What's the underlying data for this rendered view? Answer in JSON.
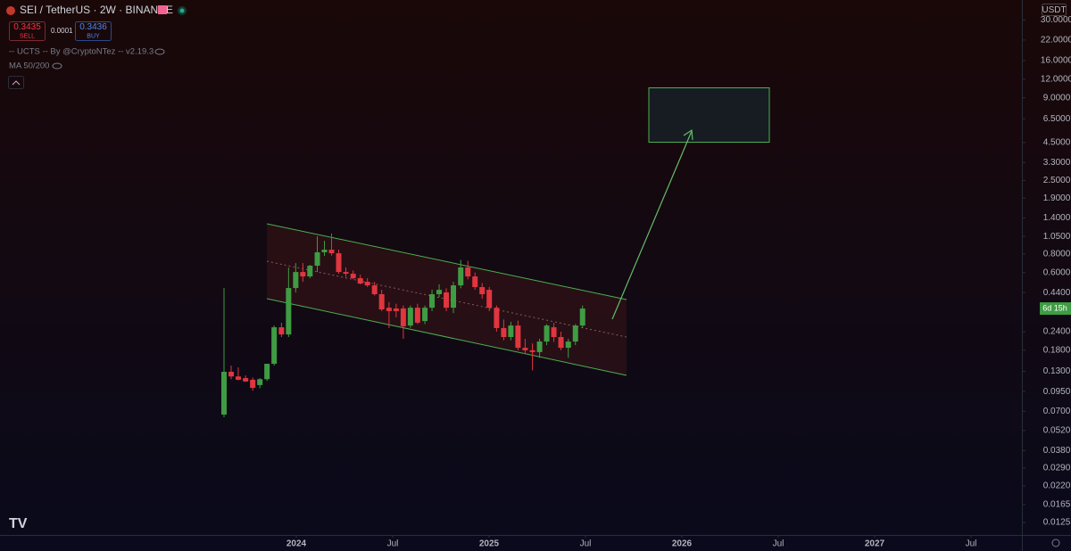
{
  "chart_data": {
    "type": "candlestick",
    "title": "SEI / TetherUS · 2W · BINANCE",
    "sell_price": 0.3435,
    "sell_label": "SELL",
    "spread": 0.0001,
    "buy_price": 0.3436,
    "buy_label": "BUY",
    "indicators": [
      "-- UCTS -- By @CryptoNTez -- v2.19.3",
      "MA 50/200"
    ],
    "currency": "USDT",
    "countdown": "6d 15h",
    "log_scale": true,
    "up_color": "#3f9c43",
    "down_color": "#e0363f",
    "xlim": [
      2022.463,
      2027.764
    ],
    "xticks": [
      {
        "value": 2024,
        "label": "2024"
      },
      {
        "value": 2024.5,
        "label": "Jul"
      },
      {
        "value": 2025,
        "label": "2025"
      },
      {
        "value": 2025.5,
        "label": "Jul"
      },
      {
        "value": 2026,
        "label": "2026"
      },
      {
        "value": 2026.5,
        "label": "Jul"
      },
      {
        "value": 2027,
        "label": "2027"
      },
      {
        "value": 2027.5,
        "label": "Jul"
      }
    ],
    "ylim": [
      0.0103,
      40.9
    ],
    "yticks": [
      {
        "value": 30,
        "label": "30.0000"
      },
      {
        "value": 22,
        "label": "22.0000"
      },
      {
        "value": 16,
        "label": "16.0000"
      },
      {
        "value": 12,
        "label": "12.0000"
      },
      {
        "value": 9,
        "label": "9.0000"
      },
      {
        "value": 6.5,
        "label": "6.5000"
      },
      {
        "value": 4.5,
        "label": "4.5000"
      },
      {
        "value": 3.3,
        "label": "3.3000"
      },
      {
        "value": 2.5,
        "label": "2.5000"
      },
      {
        "value": 1.9,
        "label": "1.9000"
      },
      {
        "value": 1.4,
        "label": "1.4000"
      },
      {
        "value": 1.05,
        "label": "1.0500"
      },
      {
        "value": 0.8,
        "label": "0.8000"
      },
      {
        "value": 0.6,
        "label": "0.6000"
      },
      {
        "value": 0.44,
        "label": "0.4400"
      },
      {
        "value": 0.24,
        "label": "0.2400"
      },
      {
        "value": 0.18,
        "label": "0.1800"
      },
      {
        "value": 0.13,
        "label": "0.1300"
      },
      {
        "value": 0.095,
        "label": "0.0950"
      },
      {
        "value": 0.07,
        "label": "0.0700"
      },
      {
        "value": 0.052,
        "label": "0.0520"
      },
      {
        "value": 0.038,
        "label": "0.0380"
      },
      {
        "value": 0.029,
        "label": "0.0290"
      },
      {
        "value": 0.022,
        "label": "0.0220"
      },
      {
        "value": 0.0165,
        "label": "0.0165"
      },
      {
        "value": 0.0125,
        "label": "0.0125"
      }
    ],
    "x": [
      2023.625,
      2023.662,
      2023.699,
      2023.737,
      2023.774,
      2023.811,
      2023.848,
      2023.885,
      2023.923,
      2023.96,
      2023.997,
      2024.034,
      2024.071,
      2024.109,
      2024.146,
      2024.183,
      2024.22,
      2024.257,
      2024.295,
      2024.332,
      2024.369,
      2024.406,
      2024.443,
      2024.481,
      2024.518,
      2024.555,
      2024.592,
      2024.629,
      2024.667,
      2024.704,
      2024.741,
      2024.778,
      2024.815,
      2024.853,
      2024.89,
      2024.927,
      2024.964,
      2025.001,
      2025.039,
      2025.076,
      2025.113,
      2025.15,
      2025.187,
      2025.225,
      2025.262,
      2025.299,
      2025.336,
      2025.373,
      2025.411,
      2025.448,
      2025.485
    ],
    "open": [
      0.0665,
      0.129,
      0.12,
      0.117,
      0.114,
      0.105,
      0.115,
      0.146,
      0.257,
      0.23,
      0.472,
      0.605,
      0.565,
      0.667,
      0.821,
      0.855,
      0.809,
      0.605,
      0.589,
      0.55,
      0.52,
      0.492,
      0.429,
      0.348,
      0.344,
      0.344,
      0.264,
      0.348,
      0.283,
      0.348,
      0.429,
      0.441,
      0.348,
      0.492,
      0.649,
      0.565,
      0.479,
      0.459,
      0.348,
      0.254,
      0.221,
      0.264,
      0.187,
      0.18,
      0.175,
      0.206,
      0.257,
      0.221,
      0.187,
      0.206,
      0.264
    ],
    "high": [
      0.472,
      0.142,
      0.138,
      0.122,
      0.118,
      0.117,
      0.12,
      0.264,
      0.276,
      0.649,
      0.695,
      0.695,
      0.676,
      1.052,
      0.982,
      1.1,
      0.855,
      0.65,
      0.62,
      0.58,
      0.55,
      0.52,
      0.46,
      0.38,
      0.37,
      0.36,
      0.36,
      0.37,
      0.36,
      0.46,
      0.5,
      0.47,
      0.52,
      0.73,
      0.72,
      0.6,
      0.51,
      0.48,
      0.36,
      0.29,
      0.28,
      0.285,
      0.215,
      0.2,
      0.215,
      0.27,
      0.275,
      0.24,
      0.215,
      0.27,
      0.36
    ],
    "low": [
      0.0638,
      0.115,
      0.113,
      0.11,
      0.0964,
      0.1,
      0.112,
      0.142,
      0.221,
      0.221,
      0.441,
      0.52,
      0.55,
      0.605,
      0.776,
      0.78,
      0.59,
      0.56,
      0.54,
      0.5,
      0.48,
      0.42,
      0.33,
      0.254,
      0.3,
      0.215,
      0.255,
      0.27,
      0.27,
      0.33,
      0.41,
      0.33,
      0.32,
      0.47,
      0.54,
      0.46,
      0.4,
      0.33,
      0.24,
      0.21,
      0.21,
      0.18,
      0.17,
      0.132,
      0.16,
      0.195,
      0.205,
      0.18,
      0.16,
      0.195,
      0.255
    ],
    "close": [
      0.129,
      0.12,
      0.114,
      0.111,
      0.1005,
      0.115,
      0.146,
      0.257,
      0.23,
      0.472,
      0.605,
      0.565,
      0.667,
      0.821,
      0.855,
      0.809,
      0.605,
      0.589,
      0.55,
      0.506,
      0.492,
      0.429,
      0.339,
      0.33,
      0.33,
      0.261,
      0.348,
      0.276,
      0.348,
      0.429,
      0.459,
      0.348,
      0.492,
      0.649,
      0.565,
      0.479,
      0.429,
      0.348,
      0.254,
      0.221,
      0.264,
      0.187,
      0.18,
      0.175,
      0.206,
      0.264,
      0.221,
      0.187,
      0.206,
      0.264,
      0.3436
    ]
  }
}
